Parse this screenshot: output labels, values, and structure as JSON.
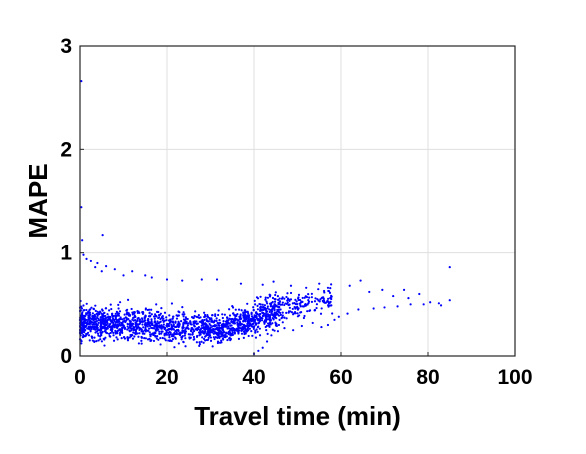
{
  "chart_data": {
    "type": "scatter",
    "title": "",
    "xlabel": "Travel time (min)",
    "ylabel": "MAPE",
    "xlim": [
      0,
      100
    ],
    "ylim": [
      0,
      3
    ],
    "xticks": [
      "0",
      "20",
      "40",
      "60",
      "80",
      "100"
    ],
    "yticks": [
      "0",
      "1",
      "2",
      "3"
    ],
    "grid": true,
    "marker_color": "#0000ff",
    "series": [
      {
        "name": "",
        "points": [
          [
            0.3,
            2.66
          ],
          [
            0.3,
            1.44
          ],
          [
            0.5,
            1.12
          ],
          [
            5.2,
            1.17
          ],
          [
            0.8,
            0.98
          ],
          [
            1.5,
            0.94
          ],
          [
            2.5,
            0.92
          ],
          [
            3.5,
            0.86
          ],
          [
            4.0,
            0.9
          ],
          [
            5.0,
            0.82
          ],
          [
            6.0,
            0.87
          ],
          [
            8.0,
            0.84
          ],
          [
            10.0,
            0.78
          ],
          [
            12.0,
            0.82
          ],
          [
            15.0,
            0.78
          ],
          [
            16.5,
            0.76
          ],
          [
            20.0,
            0.74
          ],
          [
            23.5,
            0.73
          ],
          [
            28.0,
            0.74
          ],
          [
            31.5,
            0.74
          ],
          [
            37.0,
            0.7
          ],
          [
            42.0,
            0.69
          ],
          [
            44.5,
            0.72
          ],
          [
            48.5,
            0.68
          ],
          [
            52.0,
            0.66
          ],
          [
            55.0,
            0.7
          ],
          [
            57.0,
            0.66
          ],
          [
            62.0,
            0.68
          ],
          [
            64.5,
            0.73
          ],
          [
            66.5,
            0.62
          ],
          [
            69.5,
            0.64
          ],
          [
            72.0,
            0.58
          ],
          [
            74.5,
            0.64
          ],
          [
            75.5,
            0.56
          ],
          [
            78.0,
            0.6
          ],
          [
            80.5,
            0.52
          ],
          [
            82.5,
            0.51
          ],
          [
            85.0,
            0.86
          ],
          [
            85.0,
            0.54
          ],
          [
            83.0,
            0.49
          ],
          [
            79.0,
            0.5
          ],
          [
            76.0,
            0.5
          ],
          [
            73.0,
            0.48
          ],
          [
            70.0,
            0.47
          ],
          [
            67.5,
            0.46
          ],
          [
            64.0,
            0.45
          ],
          [
            61.5,
            0.41
          ],
          [
            59.5,
            0.38
          ],
          [
            58.5,
            0.35
          ],
          [
            57.0,
            0.3
          ],
          [
            55.5,
            0.28
          ],
          [
            53.5,
            0.32
          ],
          [
            51.0,
            0.29
          ],
          [
            49.0,
            0.25
          ],
          [
            47.0,
            0.27
          ],
          [
            45.5,
            0.24
          ],
          [
            44.0,
            0.2
          ],
          [
            43.0,
            0.14
          ],
          [
            42.0,
            0.08
          ],
          [
            41.0,
            0.05
          ],
          [
            40.0,
            0.02
          ]
        ]
      }
    ]
  }
}
